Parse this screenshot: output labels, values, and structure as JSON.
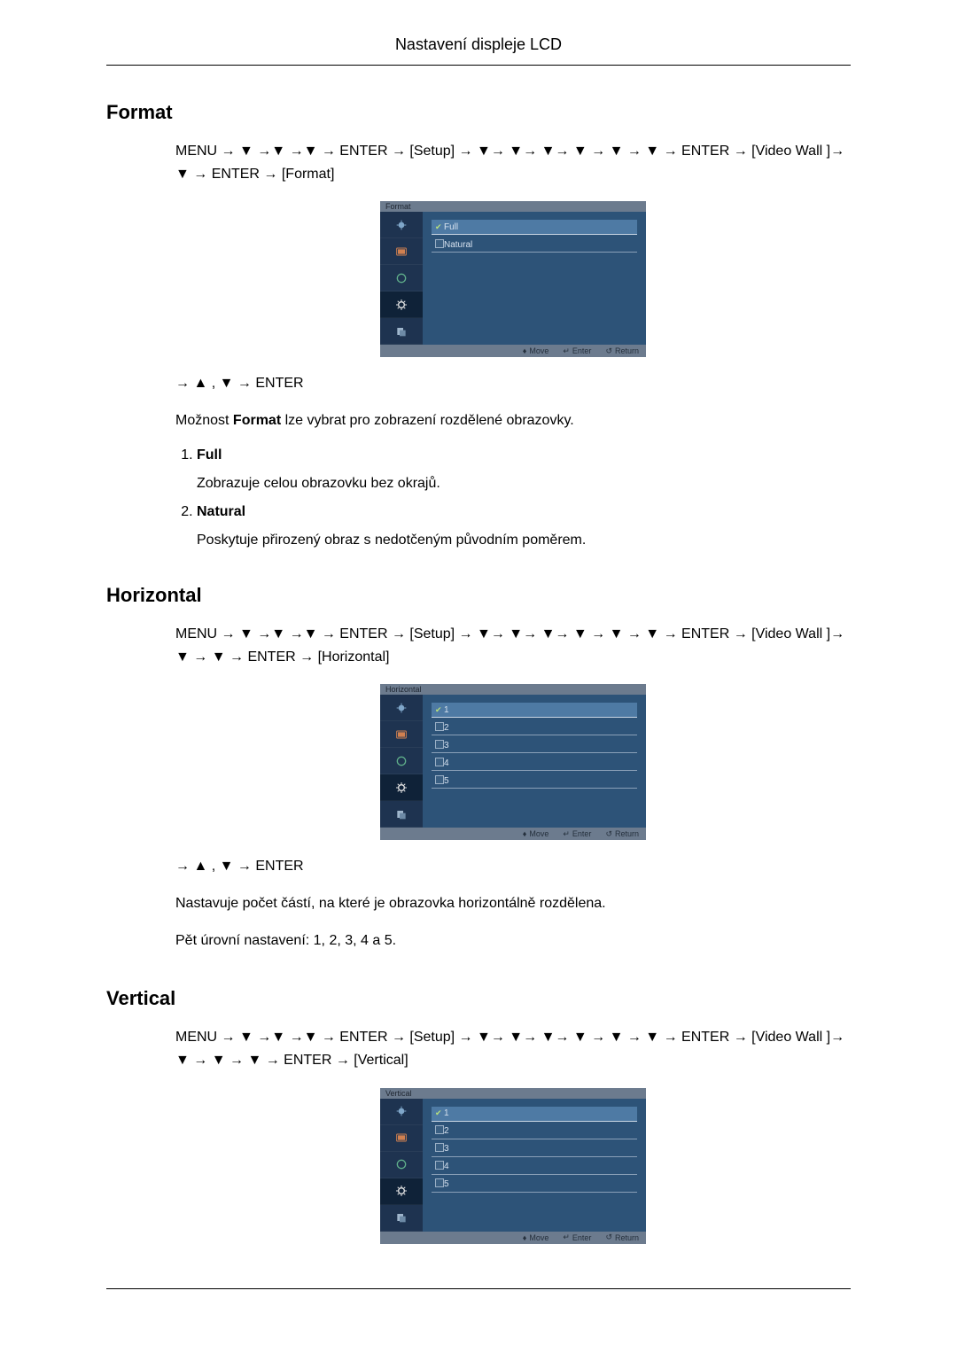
{
  "page": {
    "header": "Nastavení displeje LCD"
  },
  "sections": {
    "format": {
      "title": "Format",
      "nav": "MENU → ▼ →▼ →▼ → ENTER → [Setup] → ▼→ ▼→ ▼→ ▼ → ▼ → ▼ → ENTER → [Video Wall ]→ ▼ → ENTER → [Format]",
      "post_nav": "→ ▲ , ▼ → ENTER",
      "desc": "Možnost Format lze vybrat pro zobrazení rozdělené obrazovky.",
      "items": [
        {
          "title": "Full",
          "text": "Zobrazuje celou obrazovku bez okrajů."
        },
        {
          "title": "Natural",
          "text": "Poskytuje přirozený obraz s nedotčeným původním poměrem."
        }
      ],
      "osd": {
        "title": "Format",
        "options": [
          {
            "label": "Full",
            "selected": true,
            "checked": true
          },
          {
            "label": "Natural",
            "selected": false,
            "checked": false
          }
        ]
      }
    },
    "horizontal": {
      "title": "Horizontal",
      "nav": "MENU → ▼ →▼ →▼ → ENTER → [Setup] → ▼→ ▼→ ▼→ ▼ → ▼ → ▼ → ENTER → [Video Wall ]→ ▼ → ▼ → ENTER → [Horizontal]",
      "post_nav": "→ ▲ , ▼ → ENTER",
      "desc1": "Nastavuje počet částí, na které je obrazovka horizontálně rozdělena.",
      "desc2": "Pět úrovní nastavení: 1, 2, 3, 4 a 5.",
      "osd": {
        "title": "Horizontal",
        "options": [
          {
            "label": "1",
            "selected": true,
            "checked": true
          },
          {
            "label": "2",
            "selected": false,
            "checked": false
          },
          {
            "label": "3",
            "selected": false,
            "checked": false
          },
          {
            "label": "4",
            "selected": false,
            "checked": false
          },
          {
            "label": "5",
            "selected": false,
            "checked": false
          }
        ]
      }
    },
    "vertical": {
      "title": "Vertical",
      "nav": "MENU → ▼ →▼ →▼ → ENTER → [Setup] → ▼→ ▼→ ▼→ ▼ → ▼ → ▼ → ENTER → [Video Wall ]→ ▼ → ▼ → ▼ → ENTER → [Vertical]",
      "osd": {
        "title": "Vertical",
        "options": [
          {
            "label": "1",
            "selected": true,
            "checked": true
          },
          {
            "label": "2",
            "selected": false,
            "checked": false
          },
          {
            "label": "3",
            "selected": false,
            "checked": false
          },
          {
            "label": "4",
            "selected": false,
            "checked": false
          },
          {
            "label": "5",
            "selected": false,
            "checked": false
          }
        ]
      }
    }
  },
  "osd_foot": {
    "move": "Move",
    "enter": "Enter",
    "return": "Return"
  },
  "osd_style": {
    "side_bg": "#1e3350",
    "main_bg": "#2d5378",
    "title_bg": "#6c7b8e",
    "foot_bg": "#6c7b8e",
    "opt_sel_bg": "#4e7aa4",
    "text_color": "#d7e2ef"
  }
}
